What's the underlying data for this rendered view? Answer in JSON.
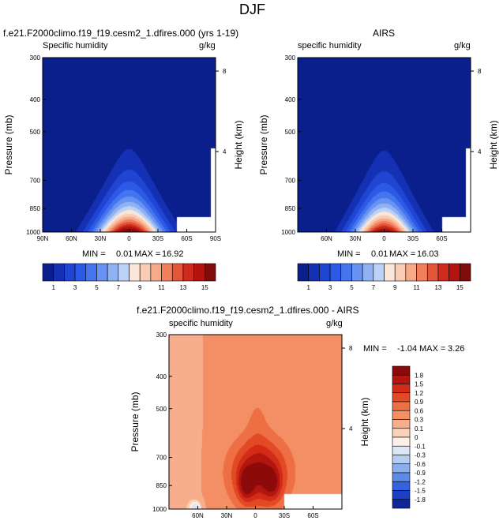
{
  "figure": {
    "title": "DJF"
  },
  "colors": {
    "background": "#ffffff",
    "dark_blue_mask": "#08228a",
    "text": "#000000"
  },
  "chart_data": [
    {
      "type": "heatmap",
      "id": "panel_model",
      "title": "f.e21.F2000climo.f19_f19.cesm2_1.dfires.000 (yrs 1-19)",
      "subtitle_left": "Specific humidity",
      "subtitle_right": "g/kg",
      "ylabel": "Pressure (mb)",
      "ylabel_right": "Height (km)",
      "xlim": [
        90,
        -90
      ],
      "x_ticks": [
        90,
        60,
        30,
        0,
        -30,
        -60,
        -90
      ],
      "x_tick_labels": [
        "90N",
        "60N",
        "30N",
        "0",
        "30S",
        "60S",
        "90S"
      ],
      "y_ticks": [
        1000,
        850,
        700,
        500,
        400,
        300
      ],
      "y_tick_labels": [
        "1000",
        "850",
        "700",
        "500",
        "400",
        "300"
      ],
      "height_ticks": [
        4,
        8
      ],
      "height_tick_labels": [
        "4",
        "8"
      ],
      "min_label": "MIN =",
      "min": "0.01",
      "max_label": "MAX =",
      "max": "16.92",
      "field": {
        "peak": 16.92,
        "peak_lat": 0,
        "width_surface": 33,
        "width_top": 16,
        "top_level": 500,
        "south_mask_lat": -50,
        "south_mask_pressure": 900
      }
    },
    {
      "type": "heatmap",
      "id": "panel_obs",
      "title": "AIRS",
      "subtitle_left": "specific humidity",
      "subtitle_right": "g/kg",
      "ylabel": "Pressure (mb)",
      "ylabel_right": "Height (km)",
      "xlim": [
        90,
        -90
      ],
      "x_ticks": [
        60,
        30,
        0,
        -30,
        -60
      ],
      "x_tick_labels": [
        "60N",
        "30N",
        "0",
        "30S",
        "60S"
      ],
      "y_ticks": [
        1000,
        850,
        700,
        500,
        400,
        300
      ],
      "y_tick_labels": [
        "1000",
        "850",
        "700",
        "500",
        "400",
        "300"
      ],
      "height_ticks": [
        4,
        8
      ],
      "height_tick_labels": [
        "4",
        "8"
      ],
      "min_label": "MIN =",
      "min": "0.01",
      "max_label": "MAX =",
      "max": "16.03",
      "field": {
        "peak": 16.03,
        "peak_lat": 0,
        "width_surface": 31,
        "width_top": 15,
        "top_level": 500,
        "south_mask_lat": -60,
        "south_mask_pressure": 900
      }
    },
    {
      "type": "heatmap",
      "id": "panel_diff",
      "title": "f.e21.F2000climo.f19_f19.cesm2_1.dfires.000 - AIRS",
      "subtitle_left": "specific humidity",
      "subtitle_right": "g/kg",
      "ylabel": "Pressure (mb)",
      "ylabel_right": "Height (km)",
      "xlim": [
        90,
        -90
      ],
      "x_ticks": [
        60,
        30,
        0,
        -30,
        -60
      ],
      "x_tick_labels": [
        "60N",
        "30N",
        "0",
        "30S",
        "60S"
      ],
      "y_ticks": [
        1000,
        850,
        700,
        500,
        400,
        300
      ],
      "y_tick_labels": [
        "1000",
        "850",
        "700",
        "500",
        "400",
        "300"
      ],
      "height_ticks": [
        4,
        8
      ],
      "height_tick_labels": [
        "4",
        "8"
      ],
      "min_label": "MIN =",
      "min": "-1.04",
      "max_label": "MAX =",
      "max": "3.26"
    }
  ],
  "colorbar_abs": {
    "labels": [
      "1",
      "3",
      "5",
      "7",
      "9",
      "11",
      "13",
      "15"
    ],
    "levels": [
      1,
      2,
      3,
      4,
      5,
      6,
      7,
      8,
      9,
      10,
      11,
      12,
      13,
      14,
      15
    ],
    "colors": [
      "#0a1e8c",
      "#1431b4",
      "#1f45d2",
      "#2c5ae6",
      "#4575ee",
      "#6893f2",
      "#8fb2f4",
      "#bcd3f7",
      "#fbe7d9",
      "#f9cdb3",
      "#f7aa88",
      "#f2805e",
      "#e4553a",
      "#cf2a1c",
      "#b31410",
      "#7f0b0b"
    ]
  },
  "colorbar_diff": {
    "labels": [
      "1.8",
      "1.5",
      "1.2",
      "0.9",
      "0.6",
      "0.3",
      "0.1",
      "0",
      "-0.1",
      "-0.3",
      "-0.6",
      "-0.9",
      "-1.2",
      "-1.5",
      "-1.8"
    ],
    "colors": [
      "#8c0a0a",
      "#b3150f",
      "#d22b16",
      "#e24a25",
      "#ee6f44",
      "#f48f65",
      "#f7ae8c",
      "#fbd1b8",
      "#fdf0e6",
      "#dce8f6",
      "#b6cdf2",
      "#8aaeee",
      "#5e8ae7",
      "#3563df",
      "#1c3fc9",
      "#10259c"
    ]
  }
}
